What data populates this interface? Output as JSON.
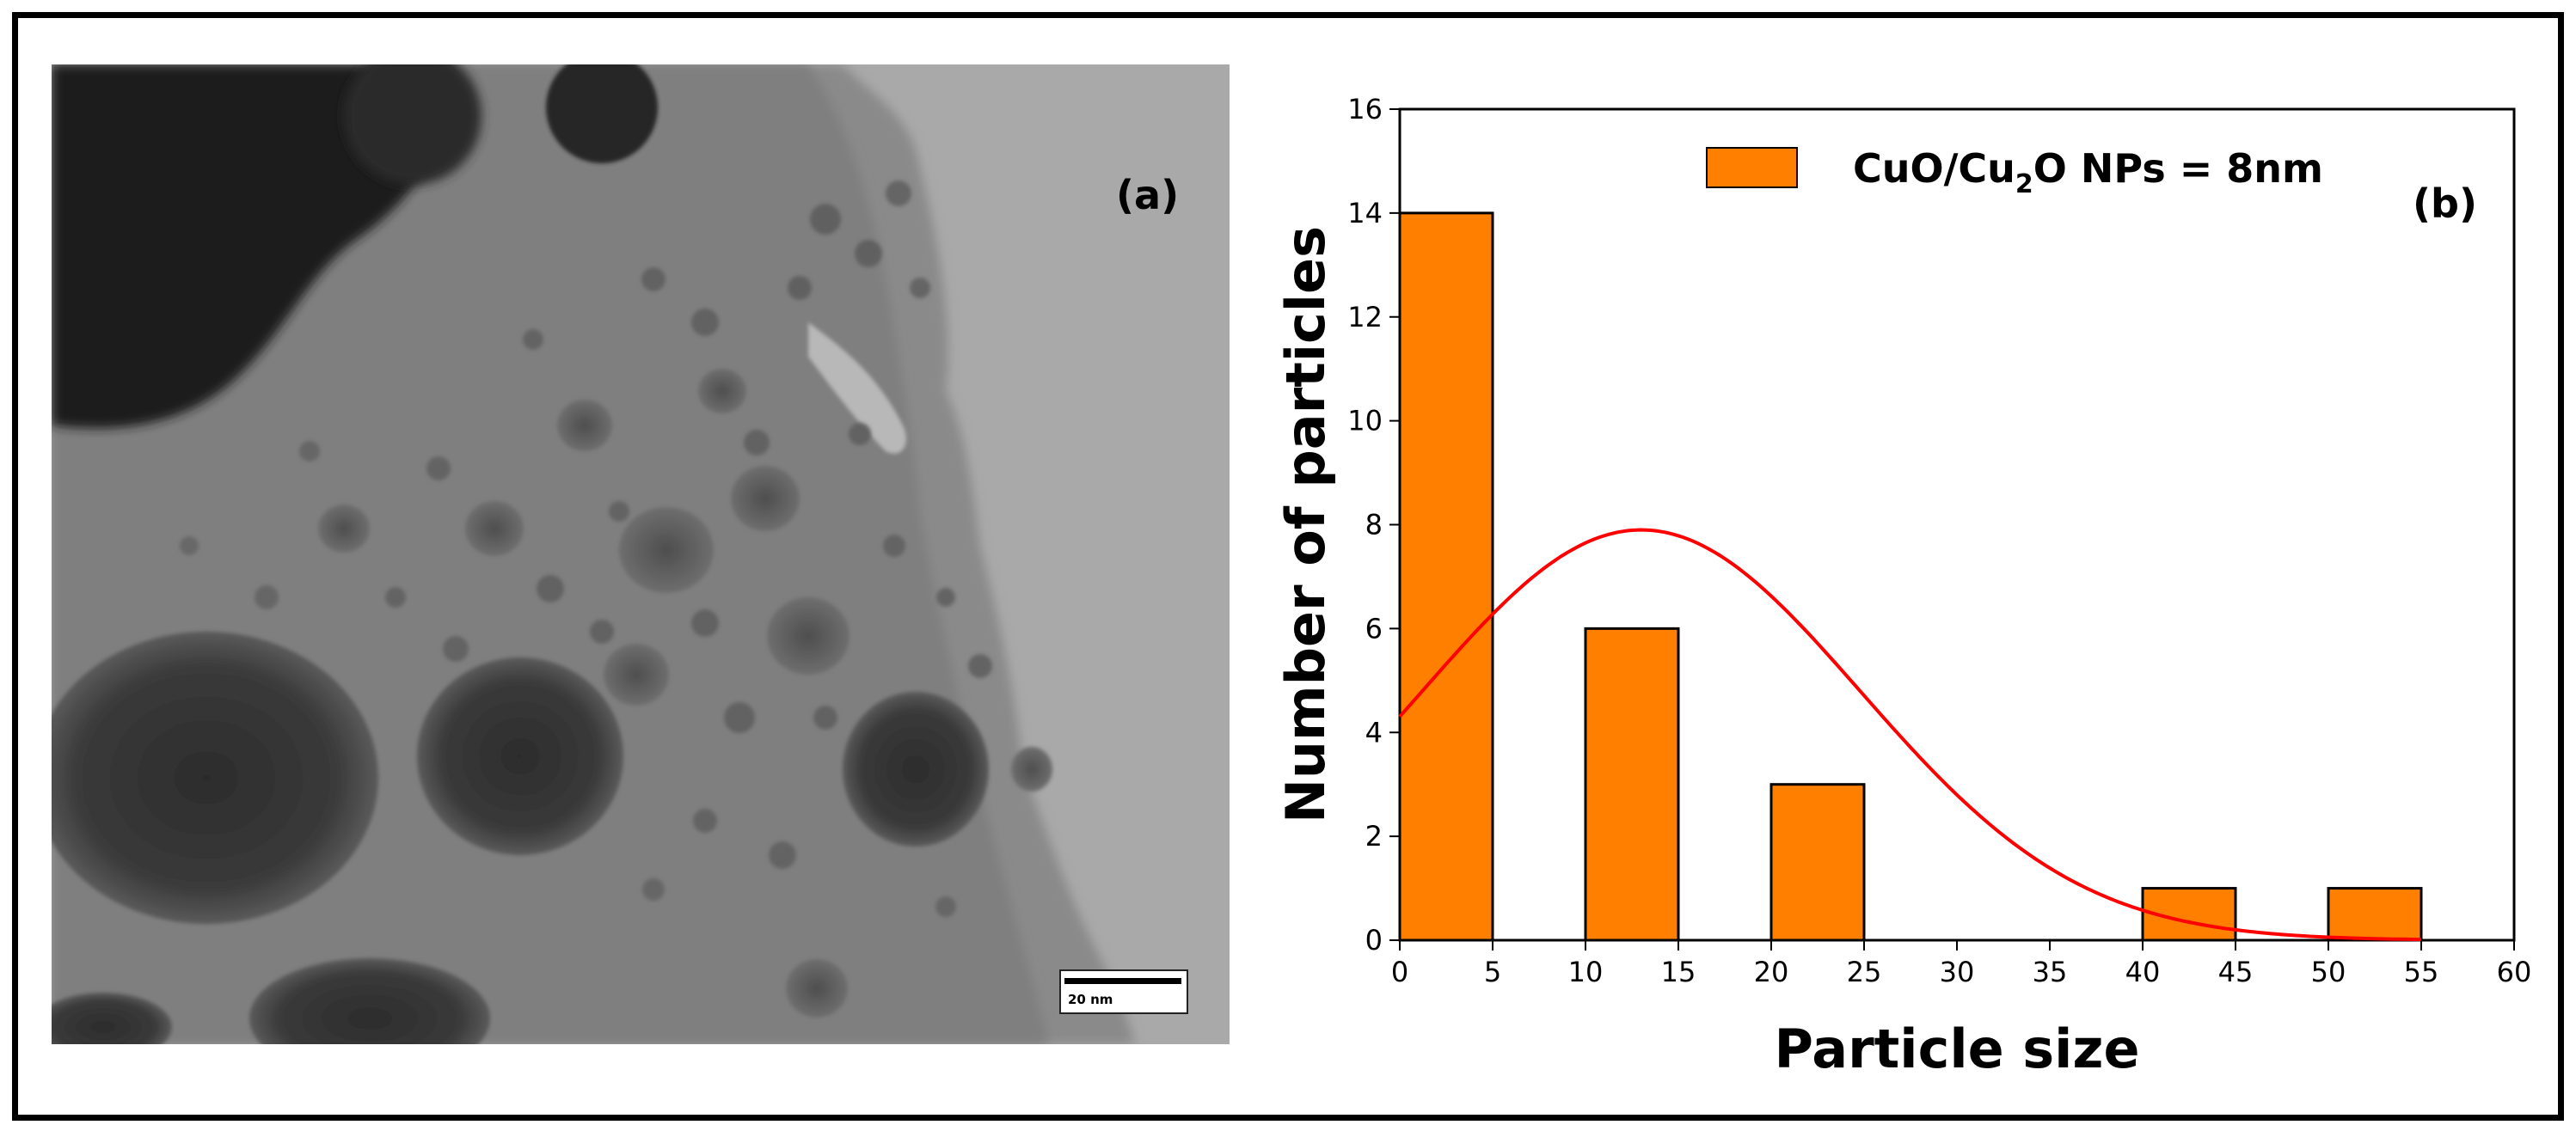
{
  "panel_a": {
    "label": "(a)",
    "scale_bar_text": "20 nm"
  },
  "chart_data": {
    "type": "bar",
    "panel_label": "(b)",
    "xlabel": "Particle size",
    "ylabel": "Number of particles",
    "xlim": [
      0,
      60
    ],
    "ylim": [
      0,
      16
    ],
    "xticks": [
      0,
      5,
      10,
      15,
      20,
      25,
      30,
      35,
      40,
      45,
      50,
      55,
      60
    ],
    "yticks": [
      0,
      2,
      4,
      6,
      8,
      10,
      12,
      14,
      16
    ],
    "bars": [
      {
        "x0": 0,
        "x1": 5,
        "value": 14
      },
      {
        "x0": 10,
        "x1": 15,
        "value": 6
      },
      {
        "x0": 20,
        "x1": 25,
        "value": 3
      },
      {
        "x0": 40,
        "x1": 45,
        "value": 1
      },
      {
        "x0": 50,
        "x1": 55,
        "value": 1
      }
    ],
    "bar_color": "#ff8000",
    "legend": {
      "text_prefix": "CuO/Cu",
      "subscript": "2",
      "text_suffix": "O NPs = 8nm",
      "placement": "top-right"
    },
    "fit_curve": {
      "type": "gaussian",
      "color": "#ff0000",
      "amplitude": 7.9,
      "mean": 13,
      "sigma": 11.8
    },
    "grid": false
  }
}
